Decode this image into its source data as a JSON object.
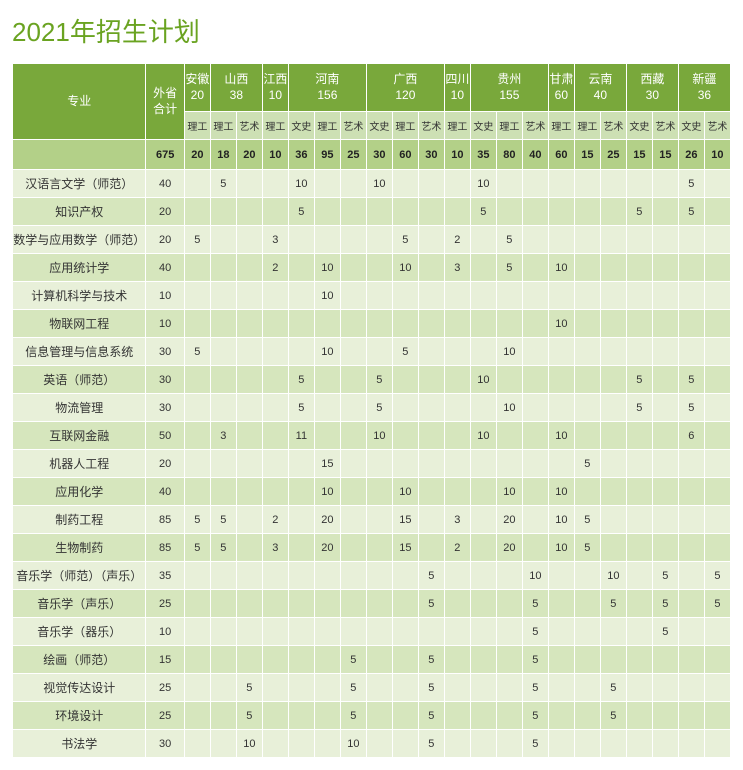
{
  "title": "2021年招生计划",
  "header": {
    "major": "专业",
    "totalLabel": "外省\n合计",
    "provinces": [
      {
        "name": "安徽",
        "count": "20",
        "subs": [
          "理工"
        ]
      },
      {
        "name": "山西",
        "count": "38",
        "subs": [
          "理工",
          "艺术"
        ]
      },
      {
        "name": "江西",
        "count": "10",
        "subs": [
          "理工"
        ]
      },
      {
        "name": "河南",
        "count": "156",
        "subs": [
          "文史",
          "理工",
          "艺术"
        ]
      },
      {
        "name": "广西",
        "count": "120",
        "subs": [
          "文史",
          "理工",
          "艺术"
        ]
      },
      {
        "name": "四川",
        "count": "10",
        "subs": [
          "理工"
        ]
      },
      {
        "name": "贵州",
        "count": "155",
        "subs": [
          "文史",
          "理工",
          "艺术"
        ]
      },
      {
        "name": "甘肃",
        "count": "60",
        "subs": [
          "理工"
        ]
      },
      {
        "name": "云南",
        "count": "40",
        "subs": [
          "理工",
          "艺术"
        ]
      },
      {
        "name": "西藏",
        "count": "30",
        "subs": [
          "文史",
          "艺术"
        ]
      },
      {
        "name": "新疆",
        "count": "36",
        "subs": [
          "文史",
          "艺术"
        ]
      }
    ]
  },
  "totals": [
    "675",
    "20",
    "18",
    "20",
    "10",
    "36",
    "95",
    "25",
    "30",
    "60",
    "30",
    "10",
    "35",
    "80",
    "40",
    "60",
    "15",
    "25",
    "15",
    "15",
    "26",
    "10"
  ],
  "rows": [
    {
      "m": "汉语言文学（师范）",
      "t": "40",
      "v": [
        "",
        "5",
        "",
        "",
        "10",
        "",
        "",
        "10",
        "",
        "",
        "",
        "10",
        "",
        "",
        "",
        "",
        "",
        "",
        "",
        "5",
        ""
      ]
    },
    {
      "m": "知识产权",
      "t": "20",
      "v": [
        "",
        "",
        "",
        "",
        "5",
        "",
        "",
        "",
        "",
        "",
        "",
        "5",
        "",
        "",
        "",
        "",
        "",
        "5",
        "",
        "5",
        ""
      ]
    },
    {
      "m": "数学与应用数学（师范）",
      "t": "20",
      "v": [
        "5",
        "",
        "",
        "3",
        "",
        "",
        "",
        "",
        "5",
        "",
        "2",
        "",
        "5",
        "",
        "",
        "",
        "",
        "",
        "",
        "",
        ""
      ]
    },
    {
      "m": "应用统计学",
      "t": "40",
      "v": [
        "",
        "",
        "",
        "2",
        "",
        "10",
        "",
        "",
        "10",
        "",
        "3",
        "",
        "5",
        "",
        "10",
        "",
        "",
        "",
        "",
        "",
        ""
      ]
    },
    {
      "m": "计算机科学与技术",
      "t": "10",
      "v": [
        "",
        "",
        "",
        "",
        "",
        "10",
        "",
        "",
        "",
        "",
        "",
        "",
        "",
        "",
        "",
        "",
        "",
        "",
        "",
        "",
        ""
      ]
    },
    {
      "m": "物联网工程",
      "t": "10",
      "v": [
        "",
        "",
        "",
        "",
        "",
        "",
        "",
        "",
        "",
        "",
        "",
        "",
        "",
        "",
        "10",
        "",
        "",
        "",
        "",
        "",
        ""
      ]
    },
    {
      "m": "信息管理与信息系统",
      "t": "30",
      "v": [
        "5",
        "",
        "",
        "",
        "",
        "10",
        "",
        "",
        "5",
        "",
        "",
        "",
        "10",
        "",
        "",
        "",
        "",
        "",
        "",
        "",
        ""
      ]
    },
    {
      "m": "英语（师范）",
      "t": "30",
      "v": [
        "",
        "",
        "",
        "",
        "5",
        "",
        "",
        "5",
        "",
        "",
        "",
        "10",
        "",
        "",
        "",
        "",
        "",
        "5",
        "",
        "5",
        ""
      ]
    },
    {
      "m": "物流管理",
      "t": "30",
      "v": [
        "",
        "",
        "",
        "",
        "5",
        "",
        "",
        "5",
        "",
        "",
        "",
        "",
        "10",
        "",
        "",
        "",
        "",
        "5",
        "",
        "5",
        ""
      ]
    },
    {
      "m": "互联网金融",
      "t": "50",
      "v": [
        "",
        "3",
        "",
        "",
        "11",
        "",
        "",
        "10",
        "",
        "",
        "",
        "10",
        "",
        "",
        "10",
        "",
        "",
        "",
        "",
        "6",
        ""
      ]
    },
    {
      "m": "机器人工程",
      "t": "20",
      "v": [
        "",
        "",
        "",
        "",
        "",
        "15",
        "",
        "",
        "",
        "",
        "",
        "",
        "",
        "",
        "",
        "5",
        "",
        "",
        "",
        "",
        ""
      ]
    },
    {
      "m": "应用化学",
      "t": "40",
      "v": [
        "",
        "",
        "",
        "",
        "",
        "10",
        "",
        "",
        "10",
        "",
        "",
        "",
        "10",
        "",
        "10",
        "",
        "",
        "",
        "",
        "",
        ""
      ]
    },
    {
      "m": "制药工程",
      "t": "85",
      "v": [
        "5",
        "5",
        "",
        "2",
        "",
        "20",
        "",
        "",
        "15",
        "",
        "3",
        "",
        "20",
        "",
        "10",
        "5",
        "",
        "",
        "",
        "",
        ""
      ]
    },
    {
      "m": "生物制药",
      "t": "85",
      "v": [
        "5",
        "5",
        "",
        "3",
        "",
        "20",
        "",
        "",
        "15",
        "",
        "2",
        "",
        "20",
        "",
        "10",
        "5",
        "",
        "",
        "",
        "",
        ""
      ]
    },
    {
      "m": "音乐学（师范）（声乐）",
      "t": "35",
      "v": [
        "",
        "",
        "",
        "",
        "",
        "",
        "",
        "",
        "",
        "5",
        "",
        "",
        "",
        "10",
        "",
        "",
        "10",
        "",
        "5",
        "",
        "5"
      ]
    },
    {
      "m": "音乐学（声乐）",
      "t": "25",
      "v": [
        "",
        "",
        "",
        "",
        "",
        "",
        "",
        "",
        "",
        "5",
        "",
        "",
        "",
        "5",
        "",
        "",
        "5",
        "",
        "5",
        "",
        "5"
      ]
    },
    {
      "m": "音乐学（器乐）",
      "t": "10",
      "v": [
        "",
        "",
        "",
        "",
        "",
        "",
        "",
        "",
        "",
        "",
        "",
        "",
        "",
        "5",
        "",
        "",
        "",
        "",
        "5",
        "",
        ""
      ]
    },
    {
      "m": "绘画（师范）",
      "t": "15",
      "v": [
        "",
        "",
        "",
        "",
        "",
        "",
        "5",
        "",
        "",
        "5",
        "",
        "",
        "",
        "5",
        "",
        "",
        "",
        "",
        "",
        "",
        ""
      ]
    },
    {
      "m": "视觉传达设计",
      "t": "25",
      "v": [
        "",
        "",
        "5",
        "",
        "",
        "",
        "5",
        "",
        "",
        "5",
        "",
        "",
        "",
        "5",
        "",
        "",
        "5",
        "",
        "",
        "",
        ""
      ]
    },
    {
      "m": "环境设计",
      "t": "25",
      "v": [
        "",
        "",
        "5",
        "",
        "",
        "",
        "5",
        "",
        "",
        "5",
        "",
        "",
        "",
        "5",
        "",
        "",
        "5",
        "",
        "",
        "",
        ""
      ]
    },
    {
      "m": "书法学",
      "t": "30",
      "v": [
        "",
        "",
        "10",
        "",
        "",
        "",
        "10",
        "",
        "",
        "5",
        "",
        "",
        "",
        "5",
        "",
        "",
        "",
        "",
        "",
        "",
        ""
      ]
    }
  ],
  "style": {
    "title_color": "#6aa321",
    "header_bg": "#79a83b",
    "header_fg": "#ffffff",
    "sub_bg": "#cde0b4",
    "total_row_bg": "#b3d088",
    "row_even_bg": "#e8f0d9",
    "row_odd_bg": "#d6e6bd",
    "border_color": "#ffffff"
  }
}
